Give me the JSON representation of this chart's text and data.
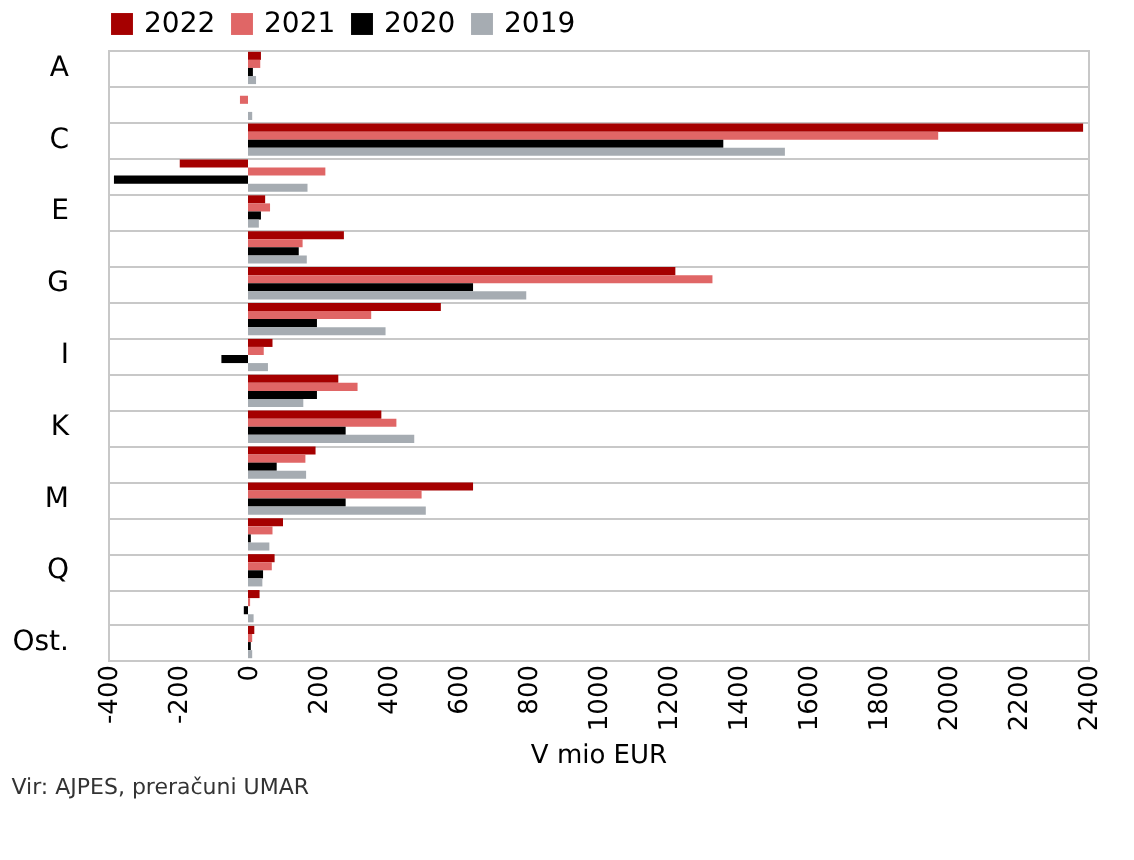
{
  "chart_data": {
    "type": "bar",
    "orientation": "horizontal",
    "xlabel": "V mio EUR",
    "categories": [
      "A",
      null,
      "C",
      null,
      "E",
      null,
      "G",
      null,
      "I",
      null,
      "K",
      null,
      "M",
      null,
      "Q",
      null,
      "Ost."
    ],
    "series": [
      {
        "name": "2022",
        "color": "#a50000",
        "values": [
          37,
          0,
          2386,
          -195,
          49,
          274,
          1221,
          551,
          70,
          258,
          381,
          193,
          643,
          100,
          76,
          33,
          18
        ]
      },
      {
        "name": "2021",
        "color": "#e06666",
        "values": [
          35,
          -23,
          1972,
          221,
          63,
          156,
          1327,
          352,
          45,
          313,
          424,
          164,
          496,
          70,
          68,
          6,
          12
        ]
      },
      {
        "name": "2020",
        "color": "#000000",
        "values": [
          14,
          0,
          1358,
          -383,
          37,
          145,
          643,
          197,
          -76,
          197,
          279,
          82,
          279,
          8,
          43,
          -12,
          8
        ]
      },
      {
        "name": "2019",
        "color": "#a6acb2",
        "values": [
          23,
          12,
          1534,
          170,
          31,
          168,
          795,
          393,
          57,
          158,
          475,
          166,
          508,
          61,
          41,
          16,
          12
        ]
      }
    ],
    "xlim": [
      -400,
      2400
    ],
    "xticks": [
      -400,
      -200,
      0,
      200,
      400,
      600,
      800,
      1000,
      1200,
      1400,
      1600,
      1800,
      2000,
      2200,
      2400
    ],
    "grid": "y",
    "legend": "top left",
    "annotations": [
      "Vir: AJPES, preračuni UMAR"
    ]
  }
}
